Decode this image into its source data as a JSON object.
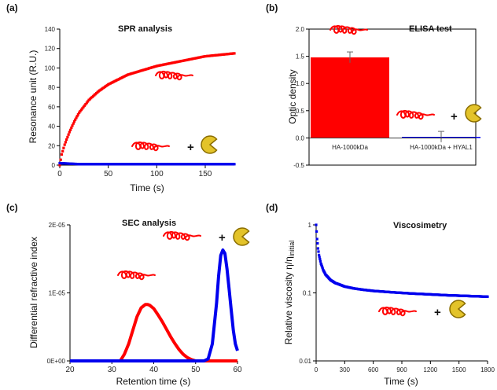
{
  "panels": {
    "a": {
      "label": "(a)"
    },
    "b": {
      "label": "(b)"
    },
    "c": {
      "label": "(c)"
    },
    "d": {
      "label": "(d)"
    }
  },
  "symbols": {
    "plus": "+"
  },
  "colors": {
    "red": "#ff0000",
    "blue": "#0000ee",
    "pacman_fill": "#e3c32a",
    "pacman_stroke": "#8a6d00",
    "error_bar": "#666666"
  },
  "icons": [
    "hyaluronic-acid-chain-icon",
    "hyal1-enzyme-pacman-icon"
  ],
  "chart_data": [
    {
      "id": "a",
      "type": "scatter",
      "title": "SPR analysis",
      "xlabel": "Time (s)",
      "ylabel": "Resonance unit (R.U.)",
      "xlim": [
        0,
        180
      ],
      "ylim": [
        0,
        140
      ],
      "xticks": [
        0,
        50,
        100,
        150
      ],
      "yticks": [
        0,
        20,
        40,
        60,
        80,
        100,
        120,
        140
      ],
      "series": [
        {
          "color": "#ff0000",
          "x": [
            0,
            2,
            5,
            10,
            15,
            20,
            30,
            40,
            50,
            60,
            70,
            80,
            90,
            100,
            110,
            120,
            130,
            140,
            150,
            160,
            170,
            180
          ],
          "y": [
            0,
            11,
            21,
            34,
            45,
            54,
            67,
            76,
            83,
            88,
            93,
            96,
            99,
            102,
            104,
            106,
            108,
            110,
            112,
            113,
            114,
            115
          ]
        },
        {
          "color": "#0000ee",
          "x": [
            0,
            20,
            40,
            60,
            80,
            100,
            120,
            140,
            160,
            180
          ],
          "y": [
            2,
            1,
            1,
            1,
            1,
            1,
            1,
            1,
            1,
            1
          ]
        }
      ],
      "grid": false
    },
    {
      "id": "b",
      "type": "bar",
      "title": "ELISA test",
      "xlabel": "",
      "ylabel": "Optic density",
      "categories": [
        "HA-1000kDa",
        "HA-1000kDa + HYAL1"
      ],
      "values": [
        1.48,
        0.02
      ],
      "errors": [
        0.1,
        0.1
      ],
      "bar_colors": [
        "#ff0000",
        "#0000ee"
      ],
      "ylim": [
        -0.5,
        2.0
      ],
      "yticks": [
        "-0.5",
        "0.0",
        "0.5",
        "1.0",
        "1.5",
        "2.0"
      ],
      "grid": false
    },
    {
      "id": "c",
      "type": "line",
      "title": "SEC analysis",
      "xlabel": "Retention time (s)",
      "ylabel": "Differential refractive index",
      "xlim": [
        20,
        60
      ],
      "ylim": [
        0,
        2e-05
      ],
      "xticks": [
        20,
        30,
        40,
        50,
        60
      ],
      "yticks": [
        "0E+00",
        "1E-05",
        "2E-05"
      ],
      "series": [
        {
          "color": "#ff0000",
          "x": [
            20,
            32,
            33,
            34,
            35,
            36,
            37,
            38,
            38.5,
            39,
            40,
            41,
            42,
            43,
            44,
            45,
            46,
            47,
            48,
            49,
            50,
            52,
            56,
            60
          ],
          "y": [
            0,
            0,
            1e-06,
            2.5e-06,
            4.5e-06,
            6.5e-06,
            7.8e-06,
            8.3e-06,
            8.3e-06,
            8.2e-06,
            7.7e-06,
            6.8e-06,
            5.8e-06,
            4.7e-06,
            3.6e-06,
            2.6e-06,
            1.7e-06,
            1e-06,
            5e-07,
            2e-07,
            0,
            0,
            0,
            0
          ]
        },
        {
          "color": "#0000ee",
          "x": [
            20,
            50,
            52,
            53,
            54,
            55,
            55.5,
            56,
            56.5,
            57,
            57.5,
            58,
            58.5,
            59,
            59.5,
            60
          ],
          "y": [
            0,
            0,
            0,
            3e-07,
            2.5e-06,
            8.5e-06,
            1.25e-05,
            1.55e-05,
            1.63e-05,
            1.58e-05,
            1.35e-05,
            1.05e-05,
            7.5e-06,
            4.5e-06,
            2.5e-06,
            1.5e-06
          ]
        }
      ],
      "grid": false
    },
    {
      "id": "d",
      "type": "scatter",
      "title": "Viscosimetry",
      "xlabel": "Time (s)",
      "ylabel": "Relative viscosity η/η",
      "ylabel_sub": "initial",
      "xlim": [
        0,
        1800
      ],
      "ylim": [
        0.01,
        1
      ],
      "yscale": "log",
      "xticks": [
        0,
        300,
        600,
        900,
        1200,
        1500,
        1800
      ],
      "yticks": [
        "0.01",
        "0.1",
        "1"
      ],
      "series": [
        {
          "color": "#0000ee",
          "x": [
            0,
            5,
            10,
            20,
            30,
            50,
            75,
            100,
            150,
            200,
            300,
            400,
            500,
            600,
            800,
            1000,
            1200,
            1400,
            1600,
            1800
          ],
          "y": [
            1.0,
            0.8,
            0.62,
            0.45,
            0.36,
            0.27,
            0.215,
            0.185,
            0.155,
            0.14,
            0.124,
            0.116,
            0.111,
            0.107,
            0.102,
            0.098,
            0.095,
            0.092,
            0.09,
            0.088
          ]
        }
      ],
      "grid": false
    }
  ]
}
